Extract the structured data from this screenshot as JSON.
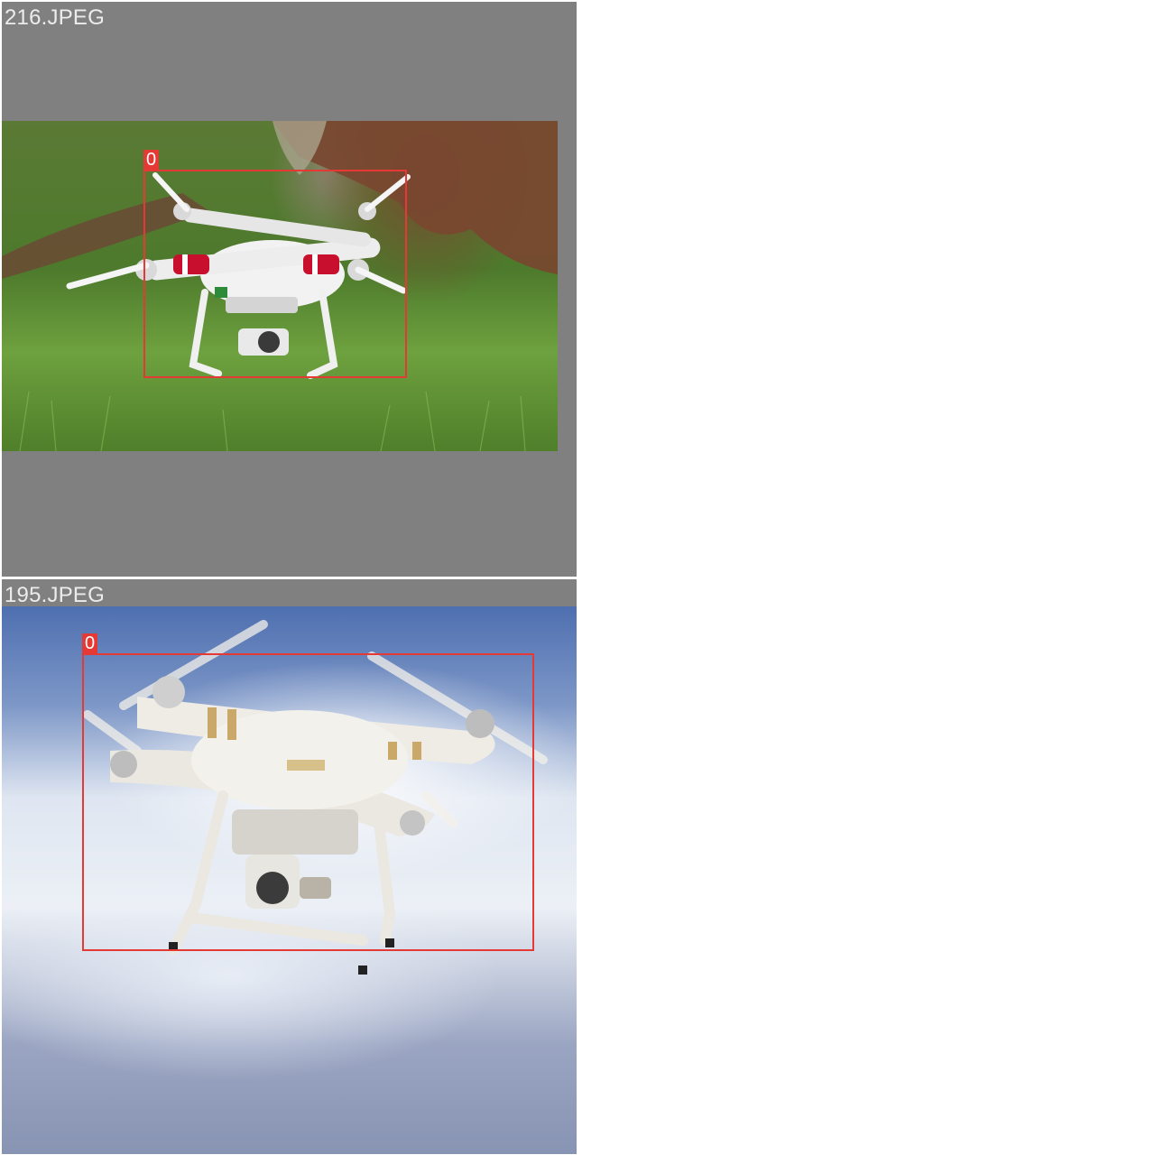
{
  "tiles": [
    {
      "filename": "216.JPEG",
      "detections": [
        {
          "label": "0"
        }
      ]
    },
    {
      "filename": "195.JPEG",
      "detections": [
        {
          "label": "0"
        }
      ]
    }
  ],
  "colors": {
    "tile_background": "#808080",
    "page_background": "#ffffff",
    "box_color": "#e53935",
    "filename_color": "#ececec"
  }
}
